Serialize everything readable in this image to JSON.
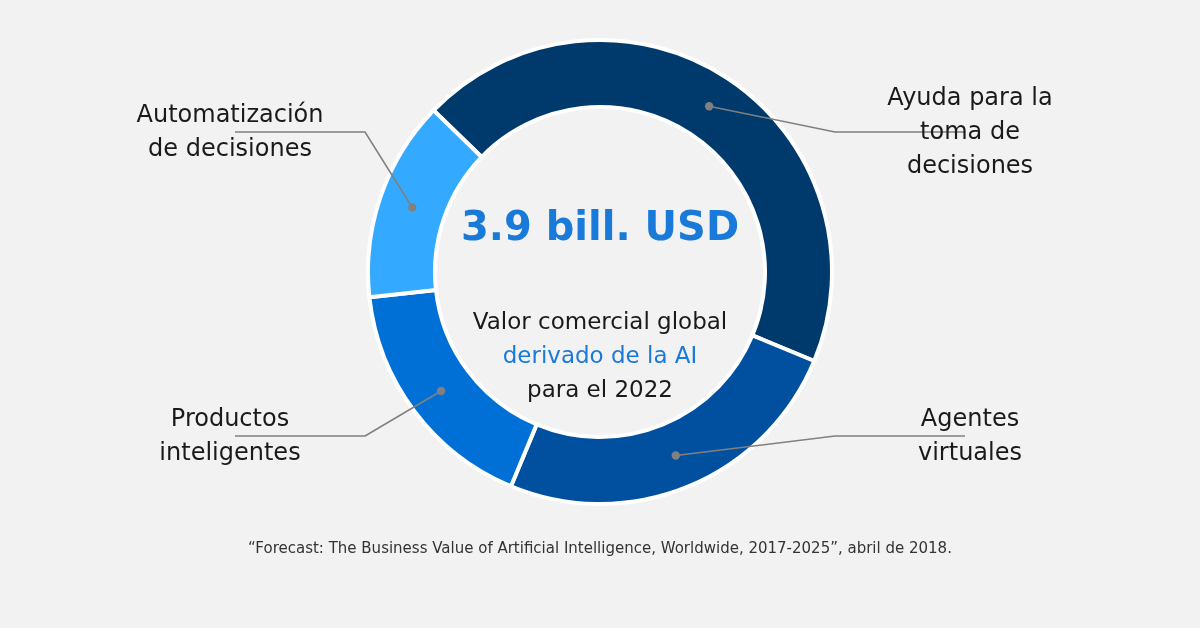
{
  "chart_data": {
    "type": "donut",
    "title": "3.9 bill. USD",
    "categories": [
      "Ayuda para la toma de decisiones",
      "Agentes virtuales",
      "Productos inteligentes",
      "Automatización de decisiones"
    ],
    "values": [
      44,
      25,
      17,
      14
    ],
    "colors": [
      "#003a6c",
      "#00509f",
      "#0070d6",
      "#33aaff"
    ],
    "annotations": [
      "Valor comercial global",
      "derivado de la AI",
      "para el 2022",
      "“Forecast: The Business Value of Artificial Intelligence, Worldwide, 2017-2025”, abril de 2018."
    ]
  }
}
